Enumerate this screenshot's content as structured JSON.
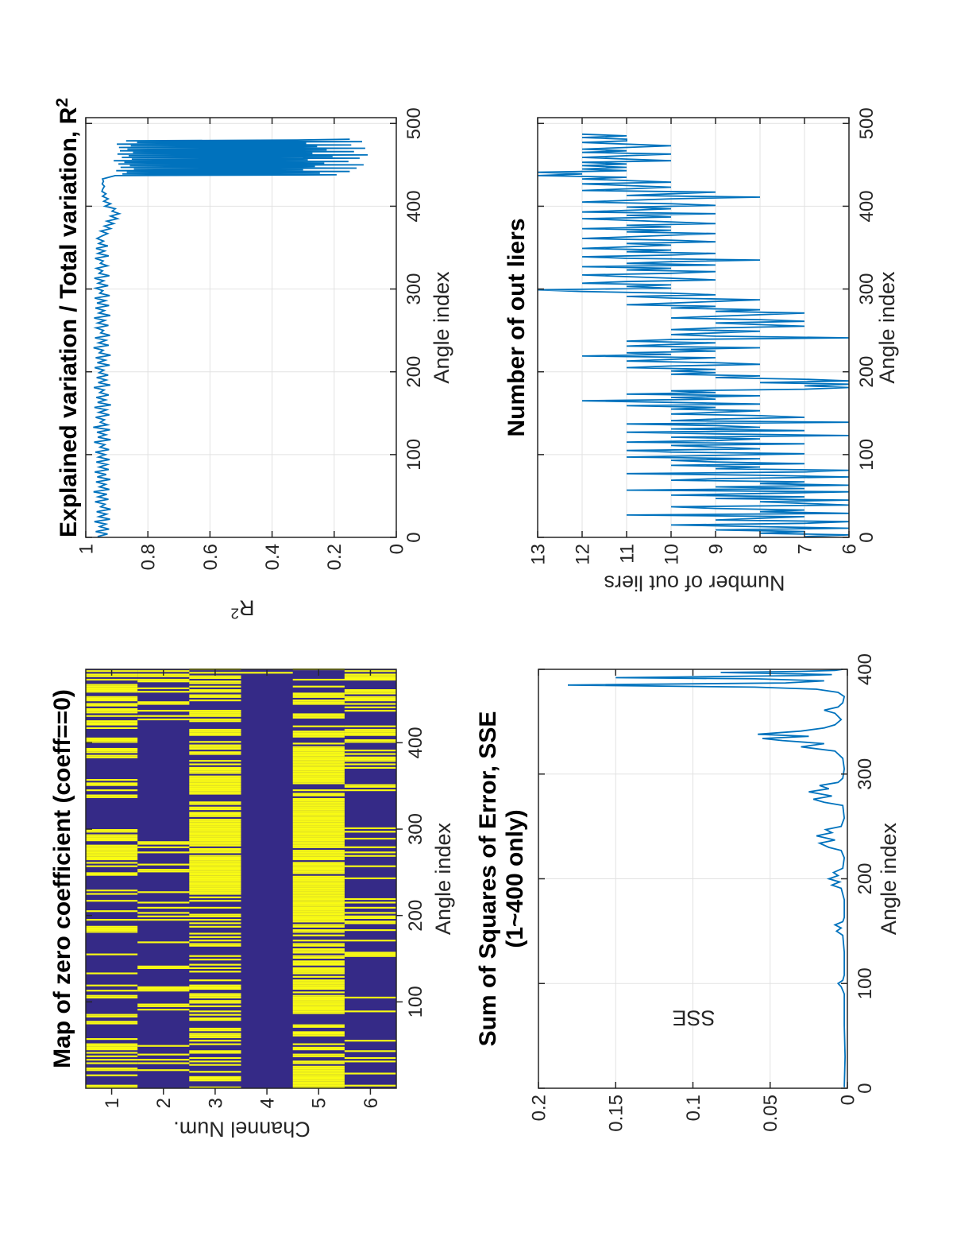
{
  "figure": {
    "background": "#ffffff",
    "orientation_note": "landscape MATLAB-style 2x2 figure rotated 90 degrees counter-clockwise",
    "colors": {
      "line": "#0072BD",
      "grid": "#E2E2E2",
      "axis": "#262626",
      "tick_label": "#262626",
      "title": "#000000",
      "heat_low": "#352A87",
      "heat_high": "#F9FB14"
    }
  },
  "chart_data": [
    {
      "id": "zero-coeff-map",
      "type": "heatmap",
      "title": "Map of zero coefficient (coeff==0)",
      "xlabel": "Angle index",
      "ylabel": "Channel Num.",
      "xlim": [
        0,
        485
      ],
      "xticks": [
        100,
        200,
        300,
        400
      ],
      "yticks": [
        1,
        2,
        3,
        4,
        5,
        6
      ],
      "value_colors": {
        "zero_coeff": "#F9FB14",
        "nonzero_coeff": "#352A87"
      },
      "channels": [
        {
          "channel": 1,
          "yellow_blocks": [
            [
              0,
              70,
              0.32
            ],
            [
              70,
              160,
              0.28
            ],
            [
              160,
              240,
              0.35
            ],
            [
              240,
              310,
              0.5
            ],
            [
              310,
              335,
              0.06
            ],
            [
              335,
              358,
              0.45
            ],
            [
              358,
              382,
              0.1
            ],
            [
              382,
              430,
              0.62
            ],
            [
              430,
              485,
              0.68
            ]
          ]
        },
        {
          "channel": 2,
          "yellow_blocks": [
            [
              0,
              45,
              0.22
            ],
            [
              45,
              195,
              0.15
            ],
            [
              195,
              245,
              0.28
            ],
            [
              245,
              291,
              0.22
            ],
            [
              291,
              426,
              0.015
            ],
            [
              426,
              460,
              0.4
            ],
            [
              460,
              485,
              0.3
            ]
          ]
        },
        {
          "channel": 3,
          "yellow_blocks": [
            [
              0,
              60,
              0.42
            ],
            [
              60,
              210,
              0.48
            ],
            [
              210,
              285,
              0.88
            ],
            [
              285,
              312,
              0.95
            ],
            [
              312,
              340,
              0.5
            ],
            [
              340,
              372,
              0.9
            ],
            [
              372,
              430,
              0.5
            ],
            [
              430,
              485,
              0.45
            ]
          ]
        },
        {
          "channel": 4,
          "yellow_blocks": [
            [
              0,
              468,
              0.004
            ],
            [
              468,
              485,
              0.2
            ]
          ]
        },
        {
          "channel": 5,
          "yellow_blocks": [
            [
              0,
              28,
              0.88
            ],
            [
              28,
              58,
              0.5
            ],
            [
              58,
              128,
              0.78
            ],
            [
              128,
              165,
              0.85
            ],
            [
              165,
              208,
              0.72
            ],
            [
              208,
              240,
              0.95
            ],
            [
              240,
              278,
              0.92
            ],
            [
              278,
              330,
              0.9
            ],
            [
              330,
              353,
              0.55
            ],
            [
              353,
              396,
              0.93
            ],
            [
              396,
              440,
              0.42
            ],
            [
              440,
              485,
              0.35
            ]
          ]
        },
        {
          "channel": 6,
          "yellow_blocks": [
            [
              0,
              95,
              0.1
            ],
            [
              95,
              140,
              0.28
            ],
            [
              140,
              175,
              0.14
            ],
            [
              175,
              215,
              0.33
            ],
            [
              215,
              260,
              0.12
            ],
            [
              260,
              305,
              0.3
            ],
            [
              305,
              345,
              0.18
            ],
            [
              345,
              395,
              0.33
            ],
            [
              395,
              418,
              0.28
            ],
            [
              418,
              432,
              0.05
            ],
            [
              432,
              462,
              0.68
            ],
            [
              462,
              485,
              0.45
            ]
          ]
        }
      ]
    },
    {
      "id": "r2",
      "type": "line",
      "title": "Explained variation / Total variation, R",
      "title_sup": "2",
      "xlabel": "Angle index",
      "ylabel": "R",
      "ylabel_sup": "2",
      "xlim": [
        0,
        507
      ],
      "ylim": [
        0,
        1
      ],
      "xticks": [
        0,
        100,
        200,
        300,
        400,
        500
      ],
      "yticks": [
        0,
        0.2,
        0.4,
        0.6,
        0.8,
        1
      ],
      "grid": true,
      "series_segments": [
        {
          "start": 1,
          "step": 3,
          "values": [
            0.962,
            0.93,
            0.968,
            0.925,
            0.955,
            0.935,
            0.972,
            0.922,
            0.958,
            0.933,
            0.965,
            0.92,
            0.952,
            0.938,
            0.97,
            0.927,
            0.96,
            0.932,
            0.975,
            0.924,
            0.956,
            0.936,
            0.967,
            0.921,
            0.963,
            0.934,
            0.971,
            0.926,
            0.957,
            0.931,
            0.966,
            0.923,
            0.959,
            0.937,
            0.969,
            0.925,
            0.954,
            0.939,
            0.973,
            0.92,
            0.961,
            0.935,
            0.964,
            0.922,
            0.976,
            0.93,
            0.953,
            0.94,
            0.968,
            0.924,
            0.958,
            0.933,
            0.972,
            0.919,
            0.962,
            0.936,
            0.966,
            0.926,
            0.955,
            0.941,
            0.974,
            0.921,
            0.96,
            0.934,
            0.965,
            0.928,
            0.957,
            0.942,
            0.971,
            0.923,
            0.963,
            0.937,
            0.968,
            0.92,
            0.956,
            0.944,
            0.975,
            0.926,
            0.959,
            0.935,
            0.97,
            0.922,
            0.952,
            0.943,
            0.967,
            0.927,
            0.962,
            0.938,
            0.973,
            0.921,
            0.958,
            0.94,
            0.969,
            0.925,
            0.964,
            0.936,
            0.971,
            0.923,
            0.955,
            0.945,
            0.968,
            0.928,
            0.96,
            0.942,
            0.972,
            0.924,
            0.957,
            0.946,
            0.966,
            0.93,
            0.953,
            0.944,
            0.97,
            0.926,
            0.961,
            0.939,
            0.967,
            0.929,
            0.958,
            0.943,
            0.964,
            0.948,
            0.93,
            0.952,
            0.92,
            0.94,
            0.91,
            0.932,
            0.898,
            0.92,
            0.892,
            0.915,
            0.905,
            0.938,
            0.92,
            0.942,
            0.928,
            0.946,
            0.935,
            0.948,
            0.945,
            0.94,
            0.947,
            0.943,
            0.946
          ]
        }
      ],
      "series_pairs": [
        [
          437,
          0.905
        ],
        [
          438,
          0.192
        ],
        [
          439,
          0.882
        ],
        [
          440,
          0.246
        ],
        [
          441,
          0.868
        ],
        [
          442,
          0.15
        ],
        [
          443,
          0.902
        ],
        [
          444,
          0.3
        ],
        [
          445,
          0.845
        ],
        [
          446,
          0.128
        ],
        [
          447,
          0.888
        ],
        [
          448,
          0.262
        ],
        [
          449,
          0.858
        ],
        [
          450,
          0.105
        ],
        [
          451,
          0.895
        ],
        [
          452,
          0.232
        ],
        [
          453,
          0.876
        ],
        [
          454,
          0.154
        ],
        [
          455,
          0.91
        ],
        [
          456,
          0.285
        ],
        [
          457,
          0.852
        ],
        [
          458,
          0.118
        ],
        [
          459,
          0.884
        ],
        [
          460,
          0.205
        ],
        [
          461,
          0.862
        ],
        [
          462,
          0.092
        ],
        [
          463,
          0.898
        ],
        [
          464,
          0.27
        ],
        [
          465,
          0.848
        ],
        [
          466,
          0.136
        ],
        [
          467,
          0.89
        ],
        [
          468,
          0.224
        ],
        [
          469,
          0.866
        ],
        [
          470,
          0.1
        ],
        [
          471,
          0.893
        ],
        [
          472,
          0.255
        ],
        [
          473,
          0.855
        ],
        [
          474,
          0.145
        ],
        [
          475,
          0.9
        ],
        [
          476,
          0.29
        ],
        [
          477,
          0.835
        ],
        [
          478,
          0.11
        ],
        [
          479,
          0.87
        ],
        [
          480,
          0.32
        ],
        [
          481,
          0.15
        ]
      ]
    },
    {
      "id": "sse",
      "type": "line",
      "title": "Sum of Squares of Error, SSE",
      "title_line2": "(1~400 only)",
      "xlabel": "Angle index",
      "ylabel": "SSE",
      "xlim": [
        0,
        400
      ],
      "ylim": [
        0,
        0.2
      ],
      "xticks": [
        0,
        100,
        200,
        300,
        400
      ],
      "yticks": [
        0,
        0.05,
        0.1,
        0.15,
        0.2
      ],
      "grid": true,
      "series_pairs": [
        [
          1,
          0.002
        ],
        [
          30,
          0.0015
        ],
        [
          60,
          0.002
        ],
        [
          90,
          0.002
        ],
        [
          97,
          0.004
        ],
        [
          100,
          0.006
        ],
        [
          103,
          0.003
        ],
        [
          108,
          0.002
        ],
        [
          130,
          0.002
        ],
        [
          146,
          0.003
        ],
        [
          150,
          0.007
        ],
        [
          153,
          0.004
        ],
        [
          156,
          0.008
        ],
        [
          159,
          0.003
        ],
        [
          163,
          0.002
        ],
        [
          180,
          0.002
        ],
        [
          191,
          0.004
        ],
        [
          194,
          0.01
        ],
        [
          197,
          0.005
        ],
        [
          200,
          0.012
        ],
        [
          203,
          0.006
        ],
        [
          206,
          0.009
        ],
        [
          210,
          0.003
        ],
        [
          220,
          0.002
        ],
        [
          227,
          0.004
        ],
        [
          230,
          0.012
        ],
        [
          234,
          0.018
        ],
        [
          237,
          0.008
        ],
        [
          241,
          0.02
        ],
        [
          244,
          0.01
        ],
        [
          247,
          0.014
        ],
        [
          250,
          0.004
        ],
        [
          258,
          0.002
        ],
        [
          270,
          0.003
        ],
        [
          273,
          0.015
        ],
        [
          276,
          0.022
        ],
        [
          279,
          0.01
        ],
        [
          283,
          0.025
        ],
        [
          286,
          0.012
        ],
        [
          289,
          0.018
        ],
        [
          292,
          0.006
        ],
        [
          296,
          0.003
        ],
        [
          305,
          0.002
        ],
        [
          315,
          0.003
        ],
        [
          322,
          0.008
        ],
        [
          326,
          0.03
        ],
        [
          329,
          0.015
        ],
        [
          332,
          0.042
        ],
        [
          334,
          0.055
        ],
        [
          336,
          0.025
        ],
        [
          338,
          0.058
        ],
        [
          341,
          0.03
        ],
        [
          344,
          0.015
        ],
        [
          347,
          0.008
        ],
        [
          352,
          0.004
        ],
        [
          358,
          0.008
        ],
        [
          361,
          0.015
        ],
        [
          364,
          0.006
        ],
        [
          368,
          0.003
        ],
        [
          374,
          0.002
        ],
        [
          378,
          0.006
        ],
        [
          381,
          0.02
        ],
        [
          383,
          0.06
        ],
        [
          385,
          0.181
        ],
        [
          387,
          0.04
        ],
        [
          389,
          0.015
        ],
        [
          391,
          0.06
        ],
        [
          392,
          0.15
        ],
        [
          394,
          0.03
        ],
        [
          395,
          0.01
        ],
        [
          397,
          0.082
        ],
        [
          398,
          0.03
        ],
        [
          399,
          0.008
        ],
        [
          400,
          0.003
        ]
      ]
    },
    {
      "id": "outliers",
      "type": "line",
      "title": "Number of out liers",
      "xlabel": "Angle index",
      "ylabel": "Number of out liers",
      "xlim": [
        0,
        507
      ],
      "ylim": [
        6,
        13
      ],
      "xticks": [
        0,
        100,
        200,
        300,
        400,
        500
      ],
      "yticks": [
        6,
        7,
        8,
        9,
        10,
        11,
        12,
        13
      ],
      "grid": true,
      "series_step": {
        "start": 1,
        "step": 2,
        "values": [
          7,
          6,
          8,
          7,
          9,
          6,
          8,
          10,
          7,
          6,
          9,
          8,
          7,
          11,
          6,
          8,
          7,
          9,
          10,
          6,
          7,
          8,
          6,
          9,
          7,
          10,
          8,
          6,
          11,
          7,
          9,
          6,
          8,
          7,
          10,
          9,
          6,
          8,
          11,
          7,
          6,
          9,
          8,
          10,
          7,
          9,
          10,
          8,
          11,
          9,
          7,
          10,
          11,
          8,
          9,
          10,
          7,
          11,
          9,
          8,
          10,
          6,
          9,
          11,
          7,
          10,
          8,
          9,
          11,
          6,
          10,
          9,
          7,
          8,
          10,
          9,
          8,
          10,
          9,
          11,
          8,
          10,
          12,
          9,
          10,
          8,
          11,
          9,
          10,
          7,
          6,
          7,
          6,
          8,
          6,
          7,
          9,
          8,
          10,
          9,
          10,
          9,
          11,
          10,
          8,
          9,
          11,
          10,
          9,
          12,
          10,
          11,
          9,
          10,
          8,
          11,
          10,
          9,
          11,
          10,
          6,
          9,
          10,
          9,
          8,
          10,
          9,
          7,
          8,
          9,
          7,
          8,
          10,
          9,
          8,
          7,
          9,
          8,
          10,
          9,
          11,
          10,
          9,
          8,
          10,
          11,
          9,
          10,
          12,
          13,
          10,
          11,
          10,
          12,
          11,
          9,
          10,
          11,
          12,
          10,
          9,
          11,
          10,
          12,
          9,
          11,
          10,
          8,
          11,
          12,
          10,
          9,
          11,
          10,
          12,
          11,
          10,
          11,
          9,
          10,
          12,
          11,
          10,
          9,
          11,
          10,
          12,
          10,
          11,
          9,
          10,
          11,
          12,
          10,
          11,
          9,
          12,
          11,
          10,
          11,
          9,
          10,
          12,
          11,
          10,
          8,
          11,
          10,
          9,
          12,
          11,
          10,
          11,
          12,
          10,
          11,
          12,
          11,
          13,
          12,
          13,
          11,
          12,
          11,
          12,
          11,
          12,
          10,
          11,
          12,
          11,
          10,
          12,
          11,
          12,
          11,
          10,
          11,
          12,
          11,
          11,
          12,
          11,
          12
        ]
      }
    }
  ]
}
